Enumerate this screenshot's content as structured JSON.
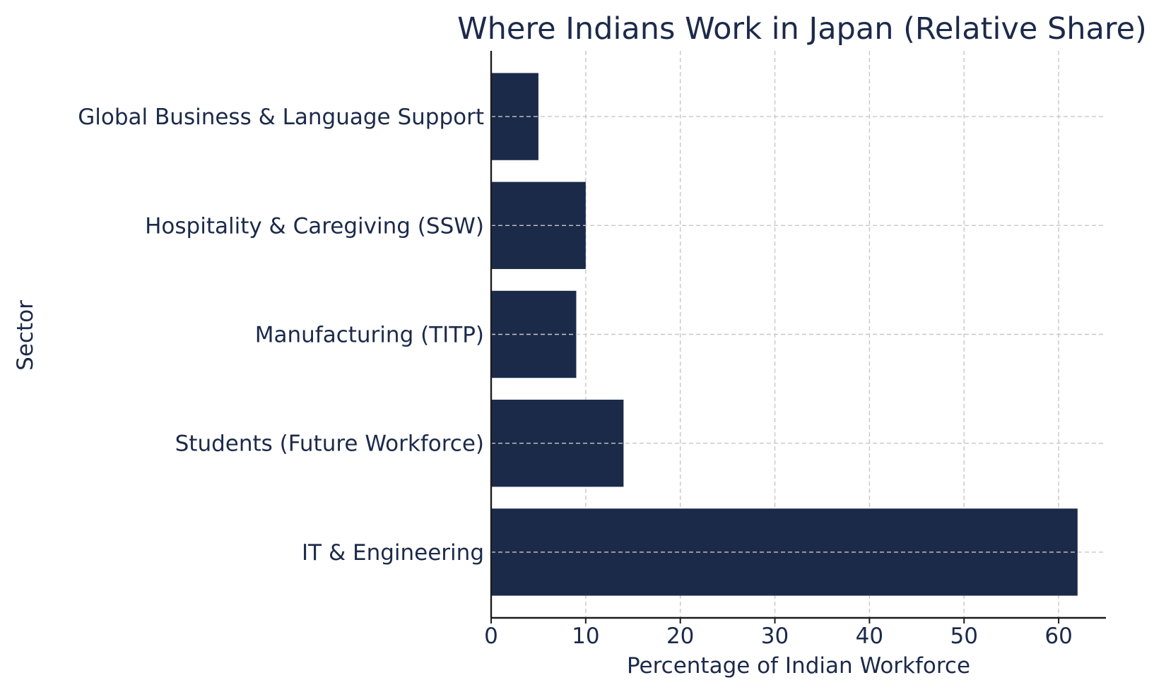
{
  "chart_data": {
    "type": "bar",
    "orientation": "horizontal",
    "title": "Where Indians Work in Japan (Relative Share)",
    "xlabel": "Percentage of Indian Workforce",
    "ylabel": "Sector",
    "categories": [
      "IT & Engineering",
      "Students (Future Workforce)",
      "Manufacturing (TITP)",
      "Hospitality & Caregiving (SSW)",
      "Global Business & Language Support"
    ],
    "values": [
      62,
      14,
      9,
      10,
      5
    ],
    "xlim": [
      0,
      65
    ],
    "xticks": [
      0,
      10,
      20,
      30,
      40,
      50,
      60
    ],
    "grid": true,
    "bar_color": "#1c2a4a"
  }
}
